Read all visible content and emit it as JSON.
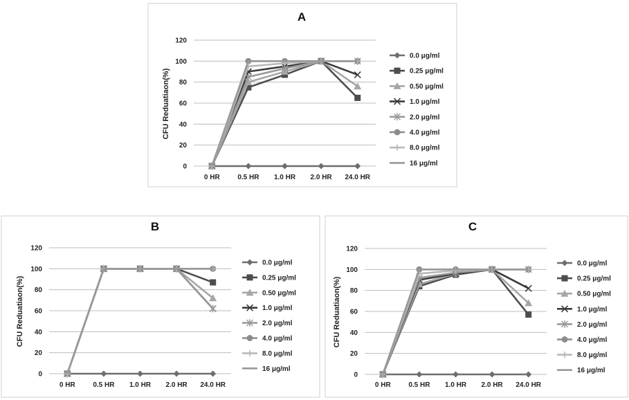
{
  "chart_data": [
    {
      "type": "line",
      "title": "A",
      "xlabel": "",
      "ylabel": "CFU Reduatiaon(%)",
      "ylim": [
        0,
        120
      ],
      "yticks": [
        0,
        20,
        40,
        60,
        80,
        100,
        120
      ],
      "categories": [
        "0 HR",
        "0.5 HR",
        "1.0 HR",
        "2.0 HR",
        "24.0 HR"
      ],
      "grid": true,
      "legend": "right",
      "series": [
        {
          "name": "0.0 μg/ml",
          "values": [
            0,
            0,
            0,
            0,
            0
          ]
        },
        {
          "name": "0.25 μg/ml",
          "values": [
            0,
            75,
            87,
            100,
            65
          ]
        },
        {
          "name": "0.50 μg/ml",
          "values": [
            0,
            80,
            90,
            100,
            76
          ]
        },
        {
          "name": "1.0 μg/ml",
          "values": [
            0,
            90,
            95,
            100,
            87
          ]
        },
        {
          "name": "2.0 μg/ml",
          "values": [
            0,
            85,
            93,
            100,
            100
          ]
        },
        {
          "name": "4.0 μg/ml",
          "values": [
            0,
            100,
            100,
            100,
            100
          ]
        },
        {
          "name": "8.0 μg/ml",
          "values": [
            0,
            95,
            98,
            100,
            100
          ]
        },
        {
          "name": "16 μg/ml",
          "values": [
            0,
            100,
            100,
            100,
            100
          ]
        }
      ]
    },
    {
      "type": "line",
      "title": "B",
      "xlabel": "",
      "ylabel": "CFU Reduatiaon(%)",
      "ylim": [
        0,
        120
      ],
      "yticks": [
        0,
        20,
        40,
        60,
        80,
        100,
        120
      ],
      "categories": [
        "0 HR",
        "0.5 HR",
        "1.0 HR",
        "2.0 HR",
        "24.0 HR"
      ],
      "grid": true,
      "legend": "right",
      "series": [
        {
          "name": "0.0 μg/ml",
          "values": [
            0,
            0,
            0,
            0,
            0
          ]
        },
        {
          "name": "0.25 μg/ml",
          "values": [
            0,
            100,
            100,
            100,
            87
          ]
        },
        {
          "name": "0.50 μg/ml",
          "values": [
            0,
            100,
            100,
            100,
            72
          ]
        },
        {
          "name": "1.0 μg/ml",
          "values": [
            0,
            100,
            100,
            100,
            62
          ]
        },
        {
          "name": "2.0 μg/ml",
          "values": [
            0,
            100,
            100,
            100,
            62
          ]
        },
        {
          "name": "4.0 μg/ml",
          "values": [
            0,
            100,
            100,
            100,
            100
          ]
        },
        {
          "name": "8.0 μg/ml",
          "values": [
            0,
            100,
            100,
            100,
            100
          ]
        },
        {
          "name": "16 μg/ml",
          "values": [
            0,
            100,
            100,
            100,
            100
          ]
        }
      ]
    },
    {
      "type": "line",
      "title": "C",
      "xlabel": "",
      "ylabel": "CFU Reduatiaon(%)",
      "ylim": [
        0,
        120
      ],
      "yticks": [
        0,
        20,
        40,
        60,
        80,
        100,
        120
      ],
      "categories": [
        "0 HR",
        "0.5 HR",
        "1.0 HR",
        "2.0 HR",
        "24.0 HR"
      ],
      "grid": true,
      "legend": "right",
      "series": [
        {
          "name": "0.0 μg/ml",
          "values": [
            0,
            0,
            0,
            0,
            0
          ]
        },
        {
          "name": "0.25 μg/ml",
          "values": [
            0,
            84,
            95,
            100,
            57
          ]
        },
        {
          "name": "0.50 μg/ml",
          "values": [
            0,
            86,
            96,
            100,
            68
          ]
        },
        {
          "name": "1.0 μg/ml",
          "values": [
            0,
            90,
            96,
            100,
            82
          ]
        },
        {
          "name": "2.0 μg/ml",
          "values": [
            0,
            92,
            97,
            100,
            100
          ]
        },
        {
          "name": "4.0 μg/ml",
          "values": [
            0,
            100,
            100,
            100,
            100
          ]
        },
        {
          "name": "8.0 μg/ml",
          "values": [
            0,
            96,
            99,
            100,
            100
          ]
        },
        {
          "name": "16 μg/ml",
          "values": [
            0,
            100,
            100,
            100,
            100
          ]
        }
      ]
    }
  ],
  "series_style": [
    {
      "color": "#6e6e6e",
      "marker": "diamond"
    },
    {
      "color": "#4d4d4d",
      "marker": "square"
    },
    {
      "color": "#a6a6a6",
      "marker": "triangle"
    },
    {
      "color": "#3c3c3c",
      "marker": "x"
    },
    {
      "color": "#9a9a9a",
      "marker": "star"
    },
    {
      "color": "#8c8c8c",
      "marker": "circle"
    },
    {
      "color": "#b8b8b8",
      "marker": "plus"
    },
    {
      "color": "#999999",
      "marker": "none"
    }
  ]
}
